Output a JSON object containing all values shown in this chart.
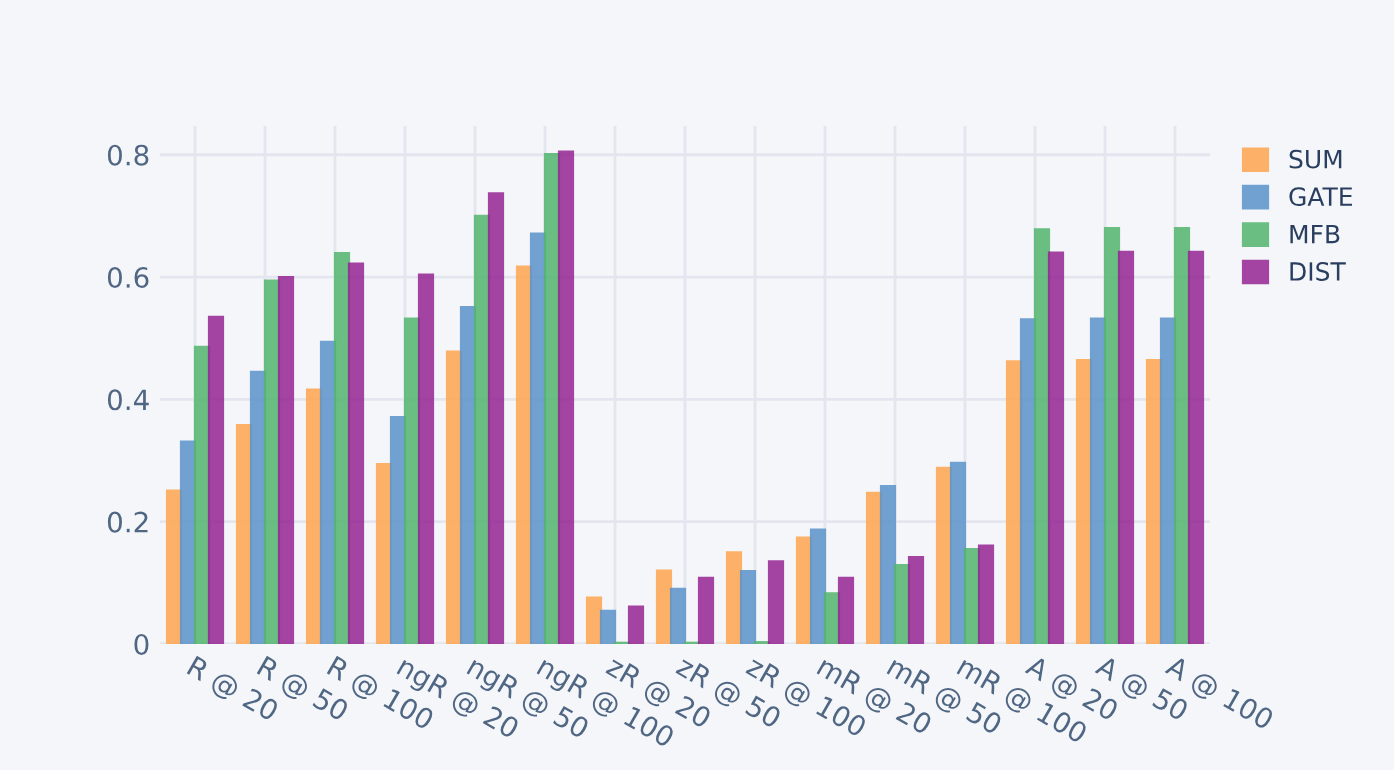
{
  "chart_data": {
    "type": "bar",
    "categories": [
      "R @ 20",
      "R @ 50",
      "R @ 100",
      "ngR @ 20",
      "ngR @ 50",
      "ngR @ 100",
      "zR @ 20",
      "zR @ 50",
      "zR @ 100",
      "mR @ 20",
      "mR @ 50",
      "mR @ 100",
      "A @ 20",
      "A @ 50",
      "A @ 100"
    ],
    "series": [
      {
        "name": "SUM",
        "color": "#ffa54f",
        "values": [
          0.251,
          0.358,
          0.416,
          0.294,
          0.478,
          0.617,
          0.076,
          0.12,
          0.15,
          0.174,
          0.247,
          0.288,
          0.462,
          0.464,
          0.464
        ]
      },
      {
        "name": "GATE",
        "color": "#5b93c9",
        "values": [
          0.331,
          0.445,
          0.494,
          0.371,
          0.551,
          0.671,
          0.054,
          0.09,
          0.119,
          0.187,
          0.258,
          0.296,
          0.531,
          0.532,
          0.532
        ]
      },
      {
        "name": "MFB",
        "color": "#52b56e",
        "values": [
          0.486,
          0.594,
          0.639,
          0.532,
          0.7,
          0.801,
          0.002,
          0.002,
          0.003,
          0.083,
          0.129,
          0.155,
          0.678,
          0.68,
          0.68
        ]
      },
      {
        "name": "DIST",
        "color": "#952493",
        "values": [
          0.535,
          0.6,
          0.622,
          0.604,
          0.737,
          0.805,
          0.061,
          0.108,
          0.135,
          0.108,
          0.142,
          0.161,
          0.64,
          0.641,
          0.641
        ]
      }
    ],
    "ylim": [
      0,
      0.847
    ],
    "yticks": [
      0,
      0.2,
      0.4,
      0.6,
      0.8
    ],
    "grid": true,
    "legend": "top right"
  }
}
